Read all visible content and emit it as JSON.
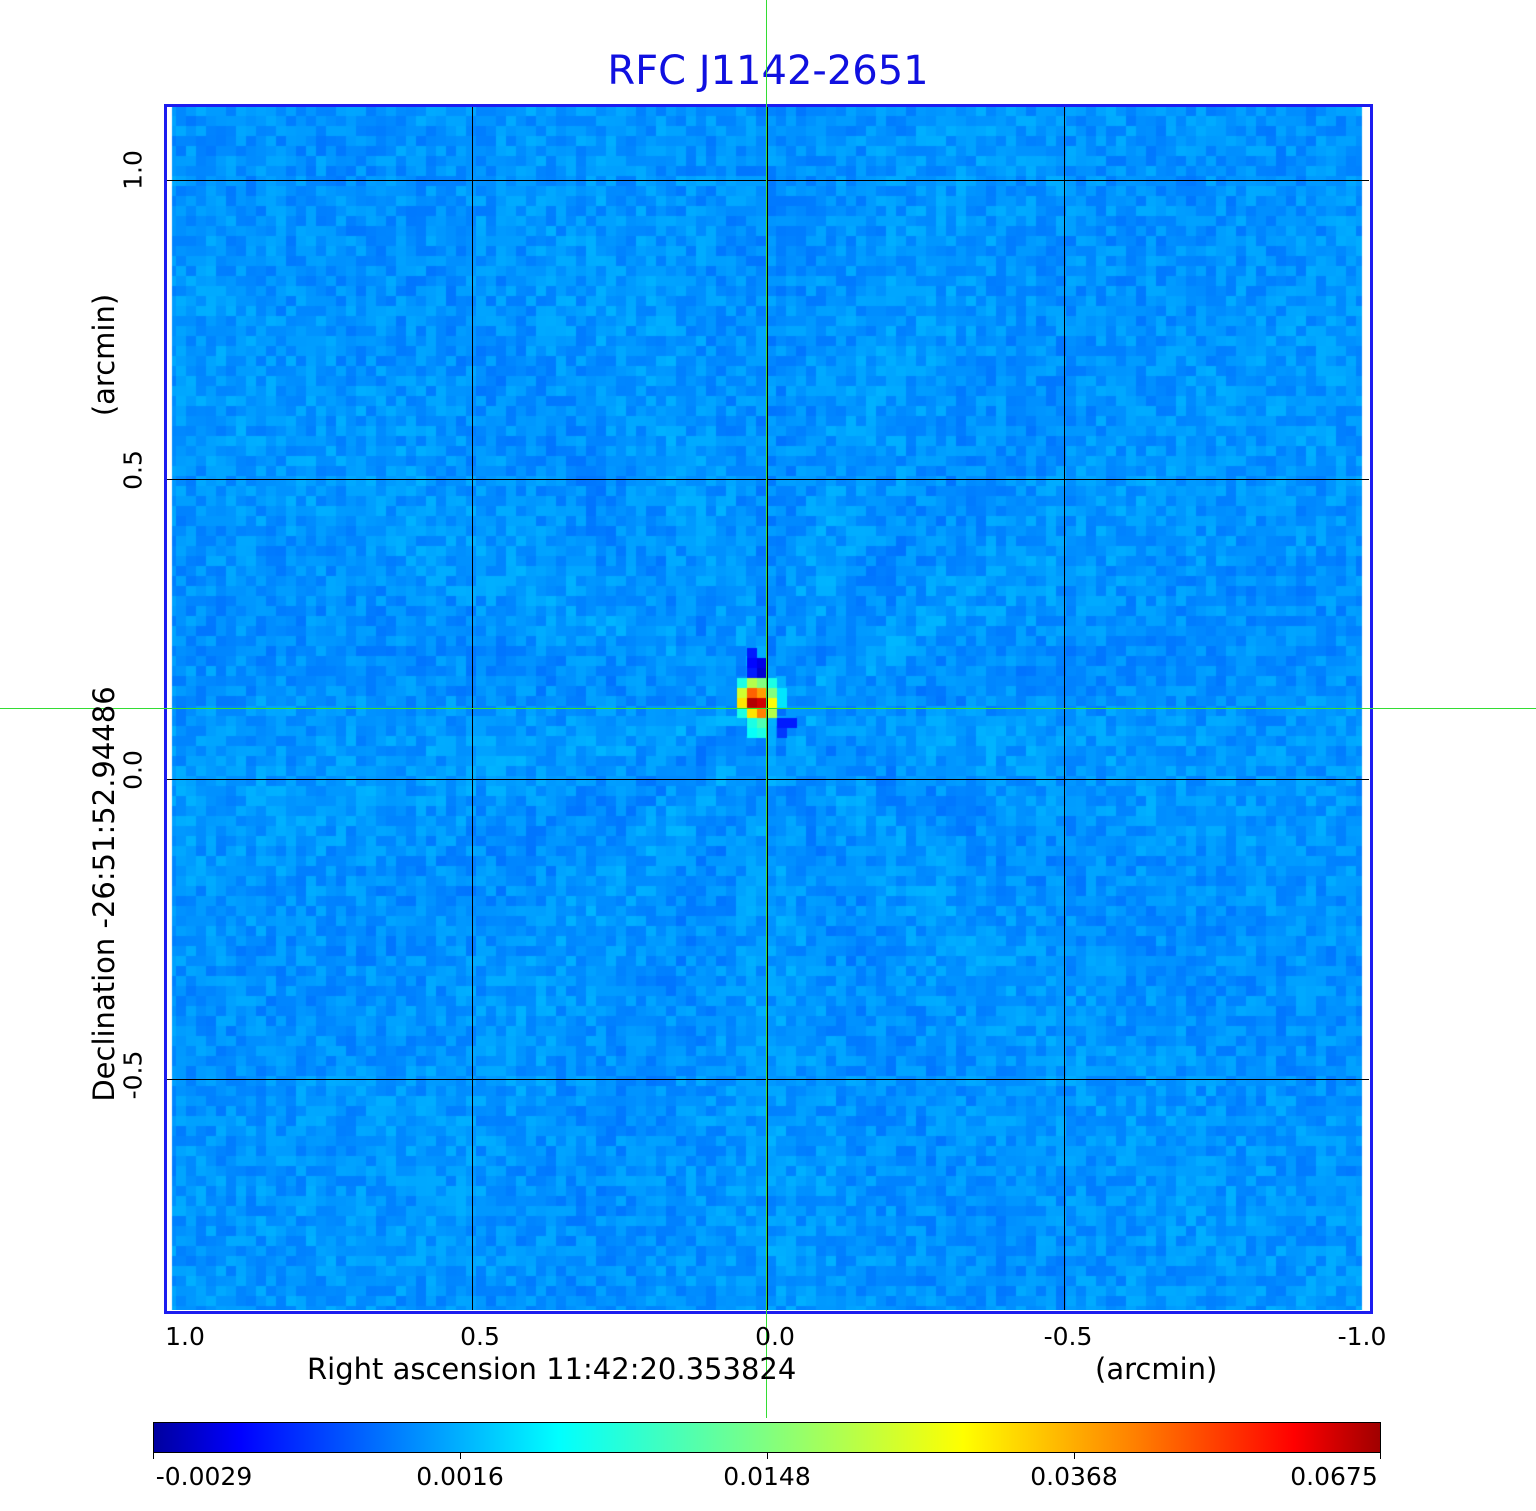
{
  "chart_data": {
    "type": "heatmap",
    "title": "RFC J1142-2651",
    "xlabel": "Right ascension  11:42:20.353824",
    "xunit": "(arcmin)",
    "ylabel": "Declination  -26:51:52.94486",
    "yunit": "(arcmin)",
    "xlim": [
      1.02,
      -1.02
    ],
    "ylim": [
      -0.88,
      1.12
    ],
    "x_ticks": [
      "1.0",
      "0.5",
      "0.0",
      "-0.5",
      "-1.0"
    ],
    "x_tick_values": [
      1.0,
      0.5,
      0.0,
      -0.5,
      -1.0
    ],
    "y_ticks": [
      "1.0",
      "0.5",
      "0.0",
      "-0.5"
    ],
    "y_tick_values": [
      1.0,
      0.5,
      0.0,
      -0.5
    ],
    "grid": true,
    "colormap": "jet",
    "colorbar": {
      "ticks": [
        "-0.0029",
        "0.0016",
        "0.0148",
        "0.0368",
        "0.0675"
      ],
      "min": -0.0029,
      "max": 0.0675,
      "placement": "bottom"
    },
    "background_level": 0.0,
    "source": {
      "x_arcmin": 0.0,
      "y_arcmin": 0.12,
      "peak": 0.0675
    },
    "crosshair": {
      "x_arcmin": 0.0,
      "y_arcmin": 0.12
    }
  },
  "colors": {
    "title": "#1010e0",
    "frame": "#1c1cf0",
    "crosshair": "#33dd33"
  }
}
